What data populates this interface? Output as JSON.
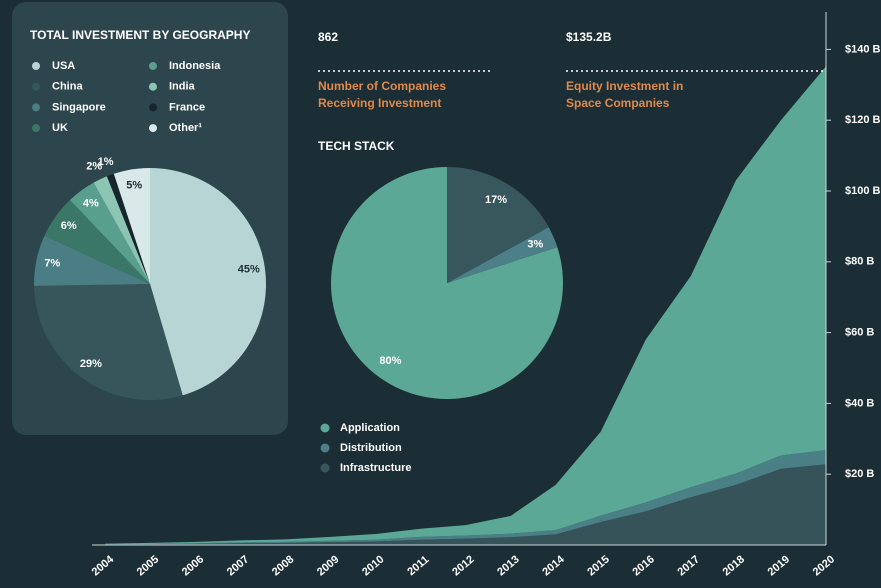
{
  "stats": [
    {
      "value": "862",
      "label": [
        "Number of Companies",
        "Receiving Investment"
      ]
    },
    {
      "value": "$135.2B",
      "label": [
        "Equity Investment in",
        "Space Companies"
      ]
    }
  ],
  "chart_data": [
    {
      "type": "pie",
      "title": "TOTAL INVESTMENT BY GEOGRAPHY",
      "categories": [
        "USA",
        "China",
        "Singapore",
        "UK",
        "Indonesia",
        "India",
        "France",
        "Other¹"
      ],
      "values": [
        45,
        29,
        7,
        6,
        4,
        2,
        1,
        5
      ],
      "value_labels": [
        "45%",
        "29%",
        "7%",
        "6%",
        "4%",
        "2%",
        "1%",
        "5%"
      ],
      "colors": [
        "#b8d5d5",
        "#36565b",
        "#4b7d85",
        "#3b7766",
        "#58a08d",
        "#8cc5b3",
        "#17262c",
        "#d9e9e9"
      ],
      "direction": "clockwise"
    },
    {
      "type": "pie",
      "title": "TECH STACK",
      "categories": [
        "Application",
        "Distribution",
        "Infrastructure"
      ],
      "values": [
        80,
        3,
        17
      ],
      "value_labels": [
        "80%",
        "3%",
        "17%"
      ],
      "colors": [
        "#5aa895",
        "#4c7f87",
        "#38575d"
      ],
      "direction": "counterclockwise"
    },
    {
      "type": "stacked-area",
      "categories": [
        "2004",
        "2005",
        "2006",
        "2007",
        "2008",
        "2009",
        "2010",
        "2011",
        "2012",
        "2013",
        "2014",
        "2015",
        "2016",
        "2017",
        "2018",
        "2019",
        "2020"
      ],
      "series": [
        {
          "color": "#36535a",
          "values": [
            0.1,
            0.2,
            0.3,
            0.5,
            0.6,
            0.8,
            1.0,
            1.5,
            1.8,
            2.2,
            3.0,
            6.5,
            9.5,
            13.5,
            17,
            21.5,
            22.8
          ]
        },
        {
          "color": "#4b7f86",
          "values": [
            0.1,
            0.1,
            0.2,
            0.2,
            0.3,
            0.4,
            0.5,
            0.8,
            0.9,
            1.0,
            1.2,
            1.8,
            2.5,
            2.8,
            3.2,
            3.8,
            4.0
          ]
        },
        {
          "color": "#5aa895",
          "values": [
            0.2,
            0.3,
            0.4,
            0.6,
            0.7,
            1.1,
            1.6,
            2.3,
            2.9,
            5.0,
            12.8,
            23.7,
            46.0,
            59.7,
            82.8,
            94.7,
            108.4
          ]
        }
      ],
      "ylim": [
        0,
        150
      ],
      "yticks": [
        {
          "value": 20,
          "label": "$20 B"
        },
        {
          "value": 40,
          "label": "$40 B"
        },
        {
          "value": 60,
          "label": "$60 B"
        },
        {
          "value": 80,
          "label": "$80 B"
        },
        {
          "value": 100,
          "label": "$100 B"
        },
        {
          "value": 120,
          "label": "$120 B"
        },
        {
          "value": 140,
          "label": "$140 B"
        }
      ],
      "y_axis_side": "right"
    }
  ]
}
